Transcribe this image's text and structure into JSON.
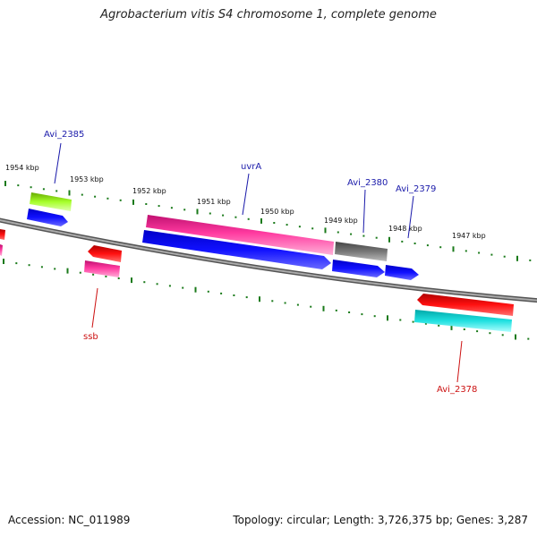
{
  "title": "Agrobacterium vitis S4 chromosome 1, complete genome",
  "footer": {
    "accession": "Accession: NC_011989",
    "topology": "Topology: circular; Length: 3,726,375 bp; Genes: 3,287"
  },
  "colors": {
    "backbone": "#808080",
    "tick": "#1a7a1a",
    "forward_label": "#1a1aaa",
    "reverse_label": "#cc1111"
  },
  "kbp_labels": [
    "1954 kbp",
    "1953 kbp",
    "1952 kbp",
    "1951 kbp",
    "1950 kbp",
    "1949 kbp",
    "1948 kbp",
    "1947 kbp"
  ],
  "gene_labels": [
    {
      "text": "Avi_2385",
      "strand": "forward"
    },
    {
      "text": "uvrA",
      "strand": "forward"
    },
    {
      "text": "Avi_2380",
      "strand": "forward"
    },
    {
      "text": "Avi_2379",
      "strand": "forward"
    },
    {
      "text": "ssb",
      "strand": "reverse"
    },
    {
      "text": "Avi_2378",
      "strand": "reverse"
    }
  ]
}
